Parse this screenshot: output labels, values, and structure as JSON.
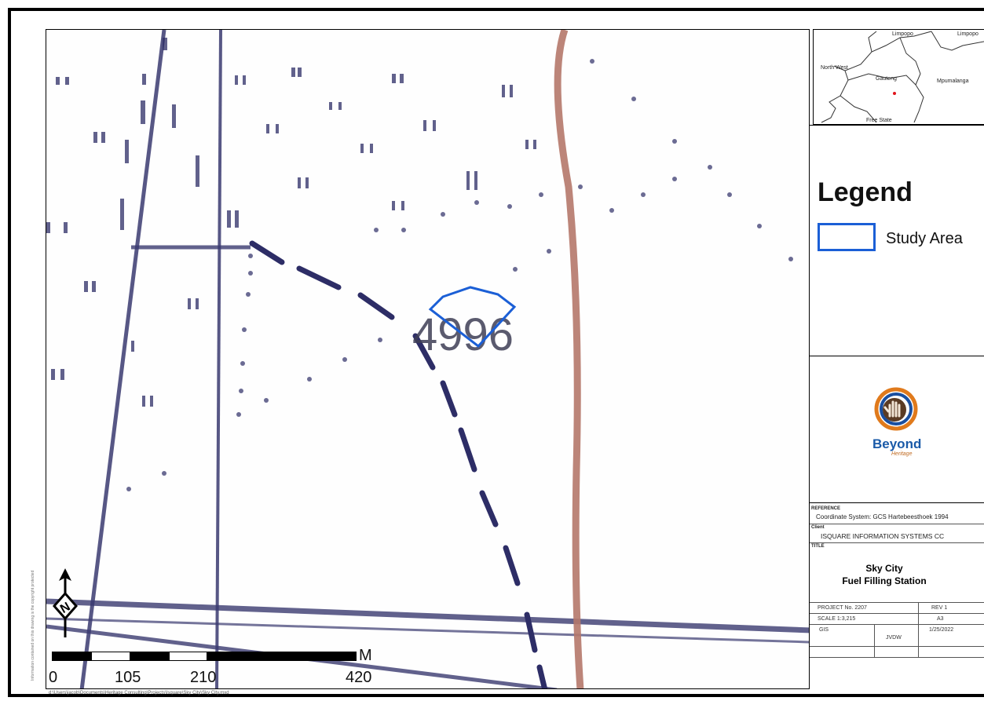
{
  "inset_map": {
    "labels": [
      "Limpopo",
      "North West",
      "Gauteng",
      "Mpumalanga",
      "Free State",
      "Limpopo"
    ],
    "marker_color": "#e0141b"
  },
  "map": {
    "parcel_label": "4996",
    "study_area_color": "#1b5fd6",
    "road_color": "#b5786a",
    "line_color": "#2d2d66"
  },
  "legend": {
    "title": "Legend",
    "items": [
      {
        "label": "Study Area",
        "color": "#1b5fd6"
      }
    ]
  },
  "logo": {
    "name": "Beyond",
    "tagline": "Heritage"
  },
  "scalebar": {
    "unit": "M",
    "ticks": [
      "0",
      "105",
      "210",
      "420"
    ]
  },
  "reference": {
    "label": "REFERENCE",
    "value": "Coordinate System: GCS Hartebeesthoek 1994"
  },
  "client": {
    "label": "Client",
    "value": "ISQUARE INFORMATION SYSTEMS CC"
  },
  "title_block": {
    "label": "TITLE",
    "line1": "Sky City",
    "line2": "Fuel Filling Station"
  },
  "project": {
    "project_no": "PROJECT No. 2207",
    "rev": "REV 1",
    "scale": "SCALE 1:3,215",
    "paper": "A3",
    "gis_label": "GIS",
    "date": "1/25/2022",
    "author": "JVDW"
  },
  "file_path": "d:\\Users\\jacob\\Documents\\Heritage Consulting\\Projects\\Isquare\\Sky City\\Sky City.mxd",
  "side_note": "Information contained on this drawing is the copyright protected"
}
